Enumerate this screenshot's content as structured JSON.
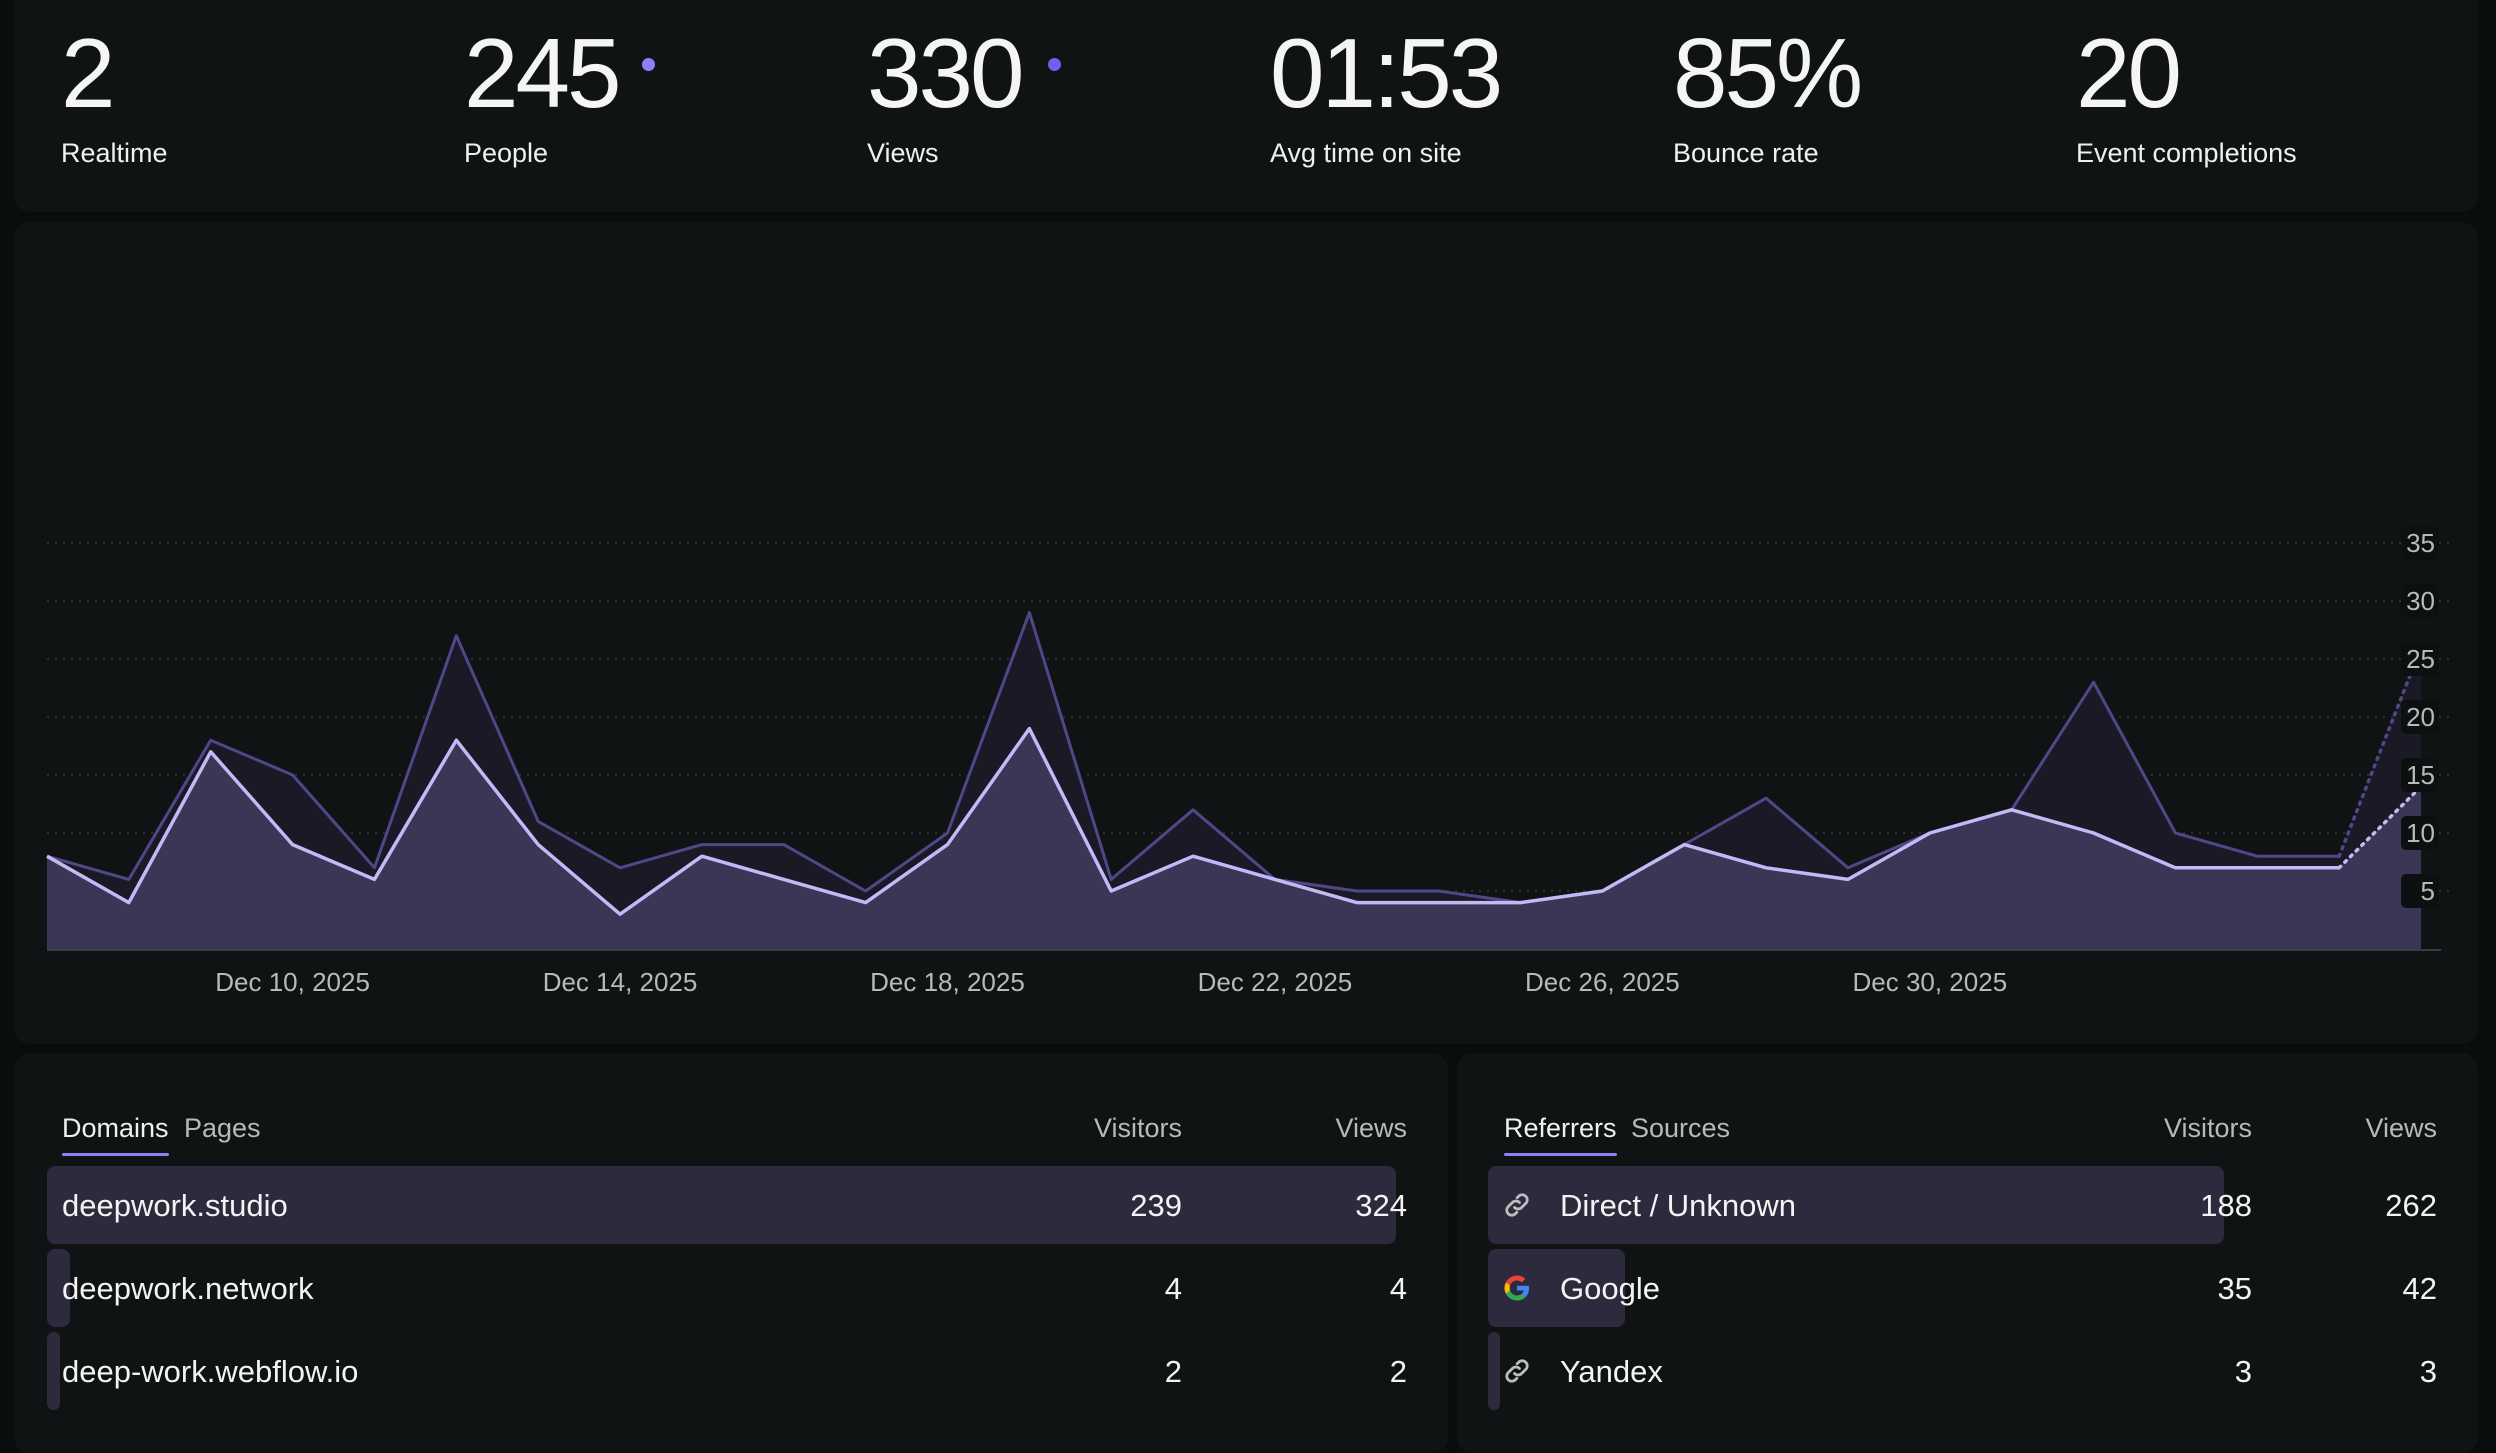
{
  "stats": [
    {
      "value": "2",
      "label": "Realtime",
      "dot": false
    },
    {
      "value": "245",
      "label": "People",
      "dot": true
    },
    {
      "value": "330",
      "label": "Views",
      "dot": true
    },
    {
      "value": "01:53",
      "label": "Avg time on site",
      "dot": false
    },
    {
      "value": "85%",
      "label": "Bounce rate",
      "dot": false
    },
    {
      "value": "20",
      "label": "Event completions",
      "dot": false
    }
  ],
  "colors": {
    "accent": "#8f7ff5",
    "views_line": "#4f4787",
    "people_line": "#c4b8f7",
    "people_fill": "#3c3656",
    "views_fill": "#1a1925"
  },
  "chart_data": {
    "type": "area",
    "x": [
      "2025-12-07",
      "2025-12-08",
      "2025-12-09",
      "2025-12-10",
      "2025-12-11",
      "2025-12-12",
      "2025-12-13",
      "2025-12-14",
      "2025-12-15",
      "2025-12-16",
      "2025-12-17",
      "2025-12-18",
      "2025-12-19",
      "2025-12-20",
      "2025-12-21",
      "2025-12-22",
      "2025-12-23",
      "2025-12-24",
      "2025-12-25",
      "2025-12-26",
      "2025-12-27",
      "2025-12-28",
      "2025-12-29",
      "2025-12-30",
      "2025-12-31",
      "2026-01-01",
      "2026-01-02",
      "2026-01-03",
      "2026-01-04",
      "2026-01-05"
    ],
    "x_tick_labels": [
      "Dec 10, 2025",
      "Dec 14, 2025",
      "Dec 18, 2025",
      "Dec 22, 2025",
      "Dec 26, 2025",
      "Dec 30, 2025"
    ],
    "x_tick_dates": [
      "2025-12-10",
      "2025-12-14",
      "2025-12-18",
      "2025-12-22",
      "2025-12-26",
      "2025-12-30"
    ],
    "series": [
      {
        "name": "Views",
        "values": [
          8,
          6,
          18,
          15,
          7,
          27,
          11,
          7,
          9,
          9,
          5,
          10,
          29,
          6,
          12,
          6,
          5,
          5,
          4,
          5,
          9,
          13,
          7,
          10,
          12,
          23,
          10,
          8,
          8,
          26
        ]
      },
      {
        "name": "People",
        "values": [
          8,
          4,
          17,
          9,
          6,
          18,
          9,
          3,
          8,
          6,
          4,
          9,
          19,
          5,
          8,
          6,
          4,
          4,
          4,
          5,
          9,
          7,
          6,
          10,
          12,
          10,
          7,
          7,
          7,
          14
        ]
      }
    ],
    "ylim": [
      0,
      35
    ],
    "y_ticks": [
      5,
      10,
      15,
      20,
      25,
      30,
      35
    ],
    "y_axis_side": "right",
    "grid": true,
    "last_point_dotted": true
  },
  "domains": {
    "tabs": [
      "Domains",
      "Pages"
    ],
    "col_visitors": "Visitors",
    "col_views": "Views",
    "rows": [
      {
        "label": "deepwork.studio",
        "visitors": "239",
        "views": "324",
        "share": 1.0
      },
      {
        "label": "deepwork.network",
        "visitors": "4",
        "views": "4",
        "share": 0.0167
      },
      {
        "label": "deep-work.webflow.io",
        "visitors": "2",
        "views": "2",
        "share": 0.0084
      }
    ]
  },
  "referrers": {
    "tabs": [
      "Referrers",
      "Sources"
    ],
    "col_visitors": "Visitors",
    "col_views": "Views",
    "rows": [
      {
        "label": "Direct / Unknown",
        "visitors": "188",
        "views": "262",
        "icon": "link-icon",
        "share": 1.0
      },
      {
        "label": "Google",
        "visitors": "35",
        "views": "42",
        "icon": "google-icon",
        "share": 0.186
      },
      {
        "label": "Yandex",
        "visitors": "3",
        "views": "3",
        "icon": "link-icon",
        "share": 0.016
      }
    ]
  }
}
